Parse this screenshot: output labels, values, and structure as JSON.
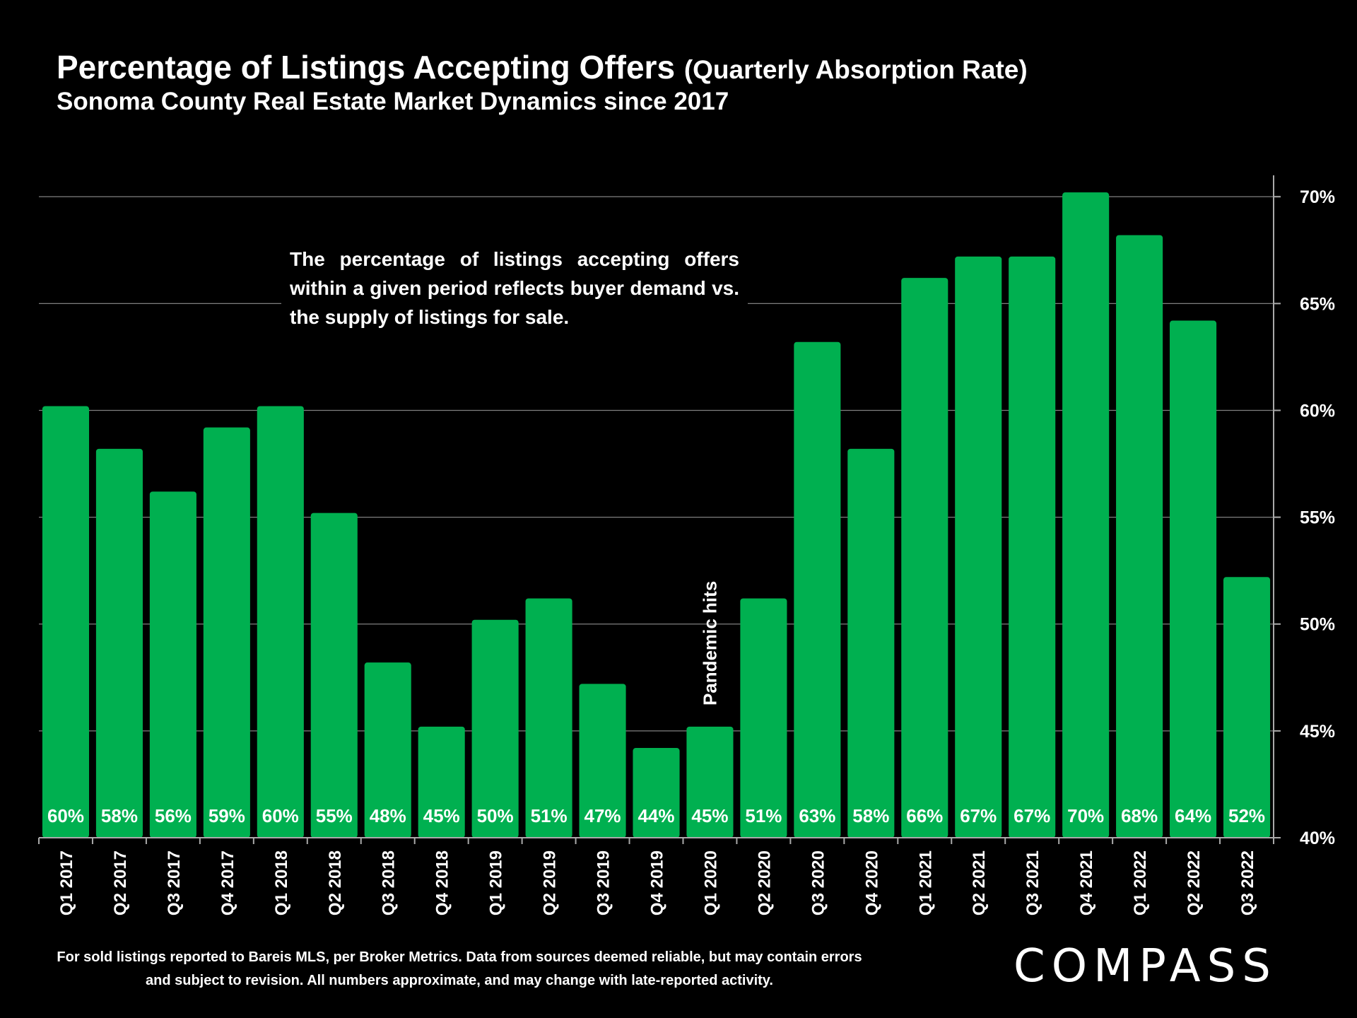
{
  "chart_data": {
    "type": "bar",
    "title": "Percentage of Listings Accepting Offers",
    "title_suffix": "(Quarterly Absorption Rate)",
    "subtitle": "Sonoma County Real Estate Market Dynamics since 2017",
    "categories": [
      "Q1 2017",
      "Q2 2017",
      "Q3 2017",
      "Q4 2017",
      "Q1 2018",
      "Q2 2018",
      "Q3 2018",
      "Q4 2018",
      "Q1 2019",
      "Q2 2019",
      "Q3 2019",
      "Q4 2019",
      "Q1 2020",
      "Q2 2020",
      "Q3 2020",
      "Q4 2020",
      "Q1 2021",
      "Q2 2021",
      "Q3 2021",
      "Q4 2021",
      "Q1 2022",
      "Q2 2022",
      "Q3 2022"
    ],
    "values": [
      60.2,
      58.2,
      56.2,
      59.2,
      60.2,
      55.2,
      48.2,
      45.2,
      50.2,
      51.2,
      47.2,
      44.2,
      45.2,
      51.2,
      63.2,
      58.2,
      66.2,
      67.2,
      67.2,
      70.2,
      68.2,
      64.2,
      52.2
    ],
    "data_labels": [
      "60%",
      "58%",
      "56%",
      "59%",
      "60%",
      "55%",
      "48%",
      "45%",
      "50%",
      "51%",
      "47%",
      "44%",
      "45%",
      "51%",
      "63%",
      "58%",
      "66%",
      "67%",
      "67%",
      "70%",
      "68%",
      "64%",
      "52%"
    ],
    "ylim": [
      40,
      71
    ],
    "y_ticks": [
      40,
      45,
      50,
      55,
      60,
      65,
      70
    ],
    "y_tick_labels": [
      "40%",
      "45%",
      "50%",
      "55%",
      "60%",
      "65%",
      "70%"
    ],
    "y_axis_side": "right",
    "grid": true,
    "bar_color": "#00b050",
    "vertical_annotation": {
      "text": "Pandemic hits",
      "category_index": 12
    },
    "xlabel": "",
    "ylabel": ""
  },
  "annotation_text": "The percentage of listings accepting offers within a given period reflects buyer demand vs. the supply of listings for sale.",
  "footnote": "For sold listings reported to Bareis MLS, per Broker Metrics. Data from sources deemed reliable, but may contain errors and subject to revision. All numbers approximate, and may change with late-reported activity.",
  "logo_text": "COMPASS"
}
